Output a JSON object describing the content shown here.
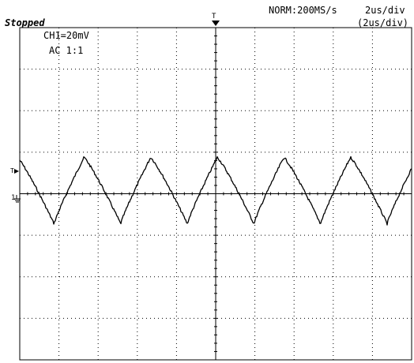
{
  "status": "Stopped",
  "acquisition": {
    "mode_rate": "NORM:200MS/s",
    "timebase": "2us/div",
    "timebase_effective": "(2us/div)"
  },
  "channel1": {
    "scale": "CH1=20mV",
    "coupling": "AC  1:1",
    "marker_label": "1",
    "trigger_level_label": "T"
  },
  "trigger_marker_label": "T",
  "grid": {
    "divisions_x": 10,
    "divisions_y": 8
  },
  "colors": {
    "background": "#ffffff",
    "grid": "#000000",
    "trace": "#000000"
  },
  "trace": {
    "shape": "sawtooth-like periodic waveform",
    "period_divisions": 1.7,
    "amplitude_mv_peak_to_peak": 32
  }
}
